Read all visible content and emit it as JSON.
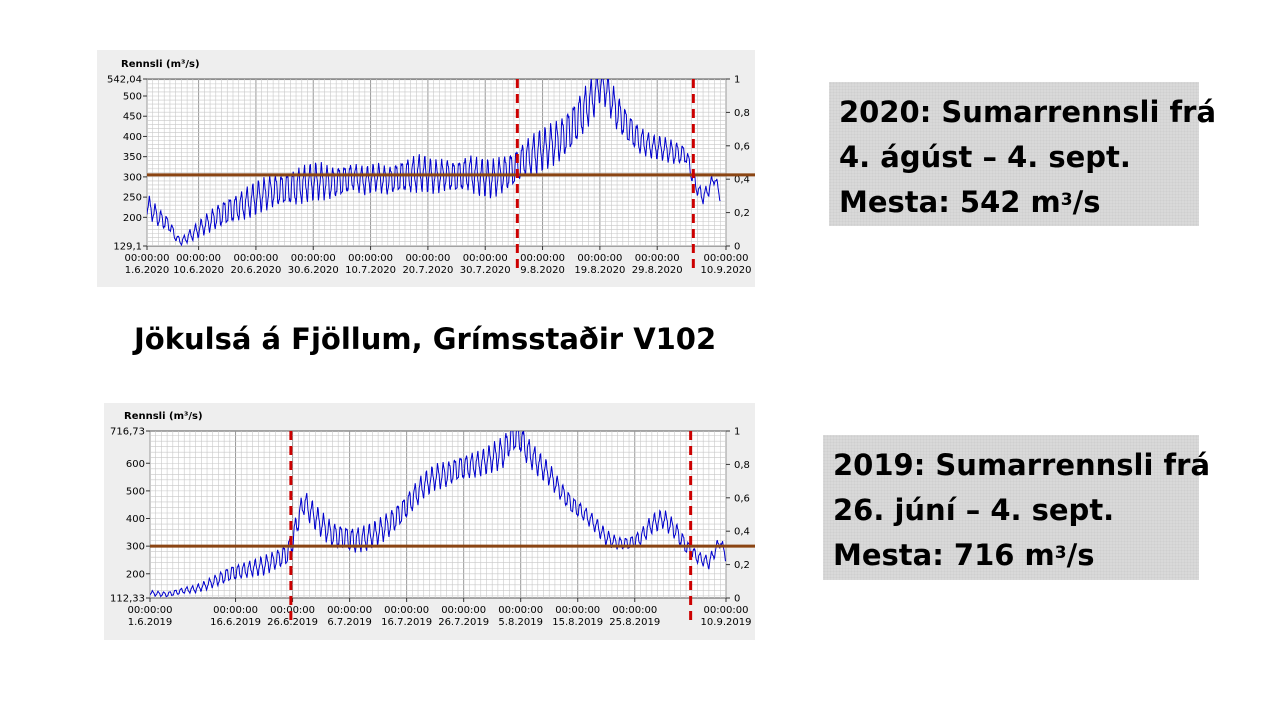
{
  "station_title": "Jökulsá á Fjöllum, Grímsstaðir V102",
  "info_2020": {
    "line1": "2020: Sumarrennsli frá",
    "line2": "4. ágúst – 4. sept.",
    "line3_prefix": "Mesta: 542 m",
    "line3_sup": "3",
    "line3_suffix": "/s"
  },
  "info_2019": {
    "line1": "2019: Sumarrennsli frá",
    "line2": "26. júní – 4. sept.",
    "line3_prefix": "Mesta: 716 m",
    "line3_sup": "3",
    "line3_suffix": "/s"
  },
  "colors": {
    "series": "#0000cc",
    "threshold": "#8b4513",
    "marker": "#cc0000",
    "grid": "#c8c8c8"
  },
  "chart_data": [
    {
      "type": "line",
      "ylabel": "Rennsli (m³/s)",
      "ylim": [
        129.1,
        542.04
      ],
      "y_ticks": [
        "542,04",
        "500",
        "450",
        "400",
        "350",
        "300",
        "250",
        "200",
        "129,1"
      ],
      "y_tick_values": [
        542.04,
        500,
        450,
        400,
        350,
        300,
        250,
        200,
        129.1
      ],
      "y2_ticks": [
        "1",
        "0,8",
        "0,6",
        "0,4",
        "0,2",
        "0"
      ],
      "y2_tick_values": [
        1,
        0.8,
        0.6,
        0.4,
        0.2,
        0
      ],
      "xlim_days": [
        0,
        101
      ],
      "x_ticks": [
        {
          "day": 0,
          "time": "00:00:00",
          "date": "1.6.2020"
        },
        {
          "day": 9,
          "time": "00:00:00",
          "date": "10.6.2020"
        },
        {
          "day": 19,
          "time": "00:00:00",
          "date": "20.6.2020"
        },
        {
          "day": 29,
          "time": "00:00:00",
          "date": "30.6.2020"
        },
        {
          "day": 39,
          "time": "00:00:00",
          "date": "10.7.2020"
        },
        {
          "day": 49,
          "time": "00:00:00",
          "date": "20.7.2020"
        },
        {
          "day": 59,
          "time": "00:00:00",
          "date": "30.7.2020"
        },
        {
          "day": 69,
          "time": "00:00:00",
          "date": "9.8.2020"
        },
        {
          "day": 79,
          "time": "00:00:00",
          "date": "19.8.2020"
        },
        {
          "day": 89,
          "time": "00:00:00",
          "date": "29.8.2020"
        },
        {
          "day": 101,
          "time": "00:00:00",
          "date": "10.9.2020"
        }
      ],
      "threshold": 305,
      "markers_days": [
        64.6,
        95.3
      ],
      "series": [
        {
          "x": [
            0,
            2,
            4,
            5,
            6,
            8,
            10,
            12,
            14,
            16,
            18,
            20,
            22,
            24,
            26,
            28,
            30,
            32,
            34,
            36,
            38,
            40,
            42,
            44,
            46,
            48,
            50,
            52,
            54,
            56,
            58,
            60,
            62,
            64,
            66,
            68,
            70,
            72,
            74,
            76,
            78,
            79,
            80,
            82,
            84,
            86,
            88,
            90,
            92,
            94,
            95,
            96,
            97,
            98,
            99,
            100
          ],
          "y": [
            230,
            200,
            180,
            150,
            140,
            160,
            180,
            200,
            215,
            225,
            240,
            255,
            265,
            270,
            275,
            285,
            290,
            285,
            290,
            300,
            290,
            300,
            290,
            300,
            305,
            310,
            300,
            305,
            300,
            310,
            300,
            295,
            305,
            320,
            345,
            360,
            375,
            390,
            420,
            460,
            500,
            530,
            520,
            460,
            420,
            390,
            375,
            370,
            360,
            355,
            310,
            270,
            250,
            270,
            300,
            250
          ],
          "amp": [
            25,
            20,
            15,
            8,
            8,
            15,
            20,
            25,
            30,
            30,
            35,
            35,
            35,
            35,
            40,
            40,
            40,
            35,
            35,
            30,
            30,
            30,
            30,
            35,
            40,
            40,
            35,
            35,
            35,
            40,
            40,
            40,
            40,
            40,
            40,
            45,
            45,
            45,
            50,
            50,
            45,
            40,
            40,
            40,
            35,
            30,
            25,
            25,
            25,
            20,
            20,
            15,
            15,
            15,
            15,
            10
          ]
        }
      ]
    },
    {
      "type": "line",
      "ylabel": "Rennsli (m³/s)",
      "ylim": [
        112.33,
        716.73
      ],
      "y_ticks": [
        "716,73",
        "600",
        "500",
        "400",
        "300",
        "200",
        "112,33"
      ],
      "y_tick_values": [
        716.73,
        600,
        500,
        400,
        300,
        200,
        112.33
      ],
      "y2_ticks": [
        "1",
        "0,8",
        "0,6",
        "0,4",
        "0,2",
        "0"
      ],
      "y2_tick_values": [
        1,
        0.8,
        0.6,
        0.4,
        0.2,
        0
      ],
      "xlim_days": [
        0,
        101
      ],
      "x_ticks": [
        {
          "day": 0,
          "time": "00:00:00",
          "date": "1.6.2019"
        },
        {
          "day": 15,
          "time": "00:00:00",
          "date": "16.6.2019"
        },
        {
          "day": 25,
          "time": "00:00:00",
          "date": "26.6.2019"
        },
        {
          "day": 35,
          "time": "00:00:00",
          "date": "6.7.2019"
        },
        {
          "day": 45,
          "time": "00:00:00",
          "date": "16.7.2019"
        },
        {
          "day": 55,
          "time": "00:00:00",
          "date": "26.7.2019"
        },
        {
          "day": 65,
          "time": "00:00:00",
          "date": "5.8.2019"
        },
        {
          "day": 75,
          "time": "00:00:00",
          "date": "15.8.2019"
        },
        {
          "day": 85,
          "time": "00:00:00",
          "date": "25.8.2019"
        },
        {
          "day": 101,
          "time": "00:00:00",
          "date": "10.9.2019"
        }
      ],
      "threshold": 300,
      "markers_days": [
        24.7,
        94.8
      ],
      "series": [
        {
          "x": [
            0,
            3,
            6,
            8,
            10,
            12,
            14,
            16,
            18,
            20,
            22,
            24,
            25,
            26,
            27,
            28,
            30,
            32,
            34,
            36,
            38,
            40,
            42,
            44,
            46,
            48,
            50,
            52,
            54,
            56,
            58,
            60,
            62,
            63,
            64,
            65,
            66,
            68,
            70,
            72,
            74,
            76,
            78,
            80,
            82,
            84,
            86,
            88,
            90,
            92,
            94,
            95,
            96,
            98,
            100,
            101
          ],
          "y": [
            130,
            125,
            140,
            145,
            160,
            180,
            200,
            210,
            220,
            230,
            250,
            270,
            320,
            400,
            460,
            430,
            380,
            340,
            330,
            320,
            330,
            350,
            380,
            420,
            470,
            520,
            550,
            560,
            580,
            590,
            600,
            620,
            640,
            680,
            700,
            690,
            650,
            600,
            560,
            500,
            450,
            420,
            380,
            330,
            310,
            310,
            330,
            380,
            400,
            360,
            300,
            280,
            260,
            240,
            320,
            260
          ],
          "amp": [
            8,
            8,
            10,
            12,
            15,
            20,
            25,
            25,
            25,
            30,
            30,
            35,
            40,
            40,
            40,
            40,
            40,
            40,
            40,
            40,
            40,
            40,
            40,
            40,
            40,
            40,
            40,
            40,
            40,
            40,
            40,
            45,
            50,
            50,
            50,
            50,
            45,
            40,
            35,
            30,
            30,
            25,
            25,
            25,
            20,
            20,
            25,
            30,
            30,
            30,
            25,
            20,
            20,
            20,
            20,
            15
          ]
        }
      ]
    }
  ]
}
